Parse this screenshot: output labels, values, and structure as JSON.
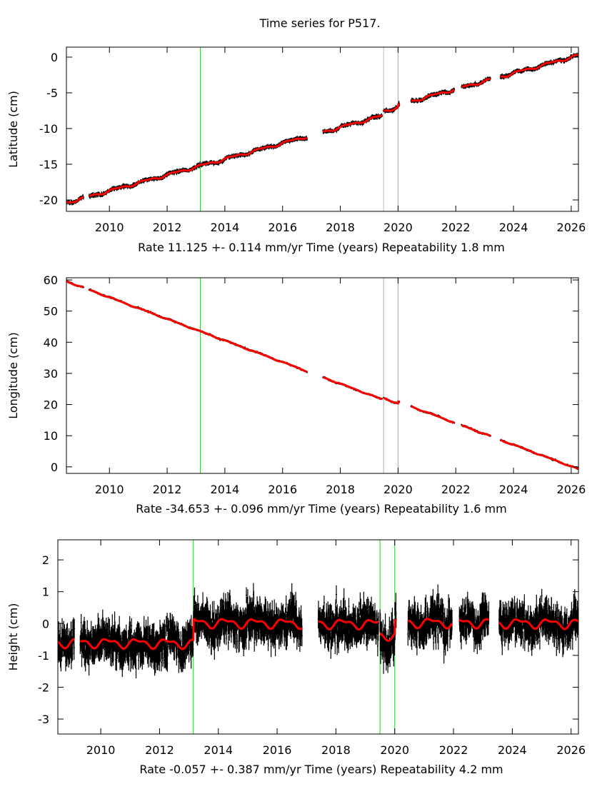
{
  "title": "Time series for P517.",
  "chart_data": [
    {
      "type": "scatter",
      "component": "latitude",
      "ylabel": "Latitude (cm)",
      "xlabel": "Time (years)",
      "rate_text": "Rate 11.125 +- 0.114 mm/yr",
      "repeatability_text": "Repeatability 1.8 mm",
      "xlim": [
        2008.51,
        2026.25
      ],
      "ylim": [
        -21.6,
        1.4
      ],
      "xticks": [
        2010,
        2012,
        2014,
        2016,
        2018,
        2020,
        2022,
        2024,
        2026
      ],
      "yticks": [
        -20,
        -15,
        -10,
        -5,
        0
      ],
      "events": [
        {
          "year": 2013.15,
          "color": "#00ee00"
        },
        {
          "year": 2019.5,
          "color": "#a8c8a8"
        },
        {
          "year": 2020.0,
          "color": "#a8a8a8"
        }
      ],
      "segments": [
        [
          2008.5,
          2009.1
        ],
        [
          2009.3,
          2016.85
        ],
        [
          2017.4,
          2019.45
        ],
        [
          2019.5,
          2020.05
        ],
        [
          2020.45,
          2021.95
        ],
        [
          2022.2,
          2023.2
        ],
        [
          2023.55,
          2026.25
        ]
      ],
      "model": {
        "start_year": 2008.5,
        "start_value": -20.4,
        "rate_cm_per_yr": 1.1125,
        "annual_amplitude": 0.15,
        "offsets": [
          {
            "year": 2019.5,
            "value": 0.6
          },
          {
            "year": 2020.0,
            "value": 0.3
          }
        ]
      },
      "noise_sigma_cm": 0.15,
      "error_bar_cm": 0.2,
      "series_colors": {
        "data": "#000000",
        "model": "#ff0000"
      }
    },
    {
      "type": "scatter",
      "component": "longitude",
      "ylabel": "Longitude (cm)",
      "xlabel": "Time (years)",
      "rate_text": "Rate -34.653 +- 0.096 mm/yr",
      "repeatability_text": "Repeatability 1.6 mm",
      "xlim": [
        2008.51,
        2026.25
      ],
      "ylim": [
        -2.1,
        60.7
      ],
      "xticks": [
        2010,
        2012,
        2014,
        2016,
        2018,
        2020,
        2022,
        2024,
        2026
      ],
      "yticks": [
        0,
        10,
        20,
        30,
        40,
        50,
        60
      ],
      "events": [
        {
          "year": 2013.15,
          "color": "#00ee00"
        },
        {
          "year": 2019.5,
          "color": "#a8a8a8"
        },
        {
          "year": 2020.0,
          "color": "#a8a8a8"
        }
      ],
      "segments": [
        [
          2008.5,
          2009.1
        ],
        [
          2009.3,
          2016.85
        ],
        [
          2017.4,
          2019.45
        ],
        [
          2019.5,
          2020.05
        ],
        [
          2020.45,
          2021.95
        ],
        [
          2022.2,
          2023.2
        ],
        [
          2023.55,
          2026.25
        ]
      ],
      "model": {
        "start_year": 2008.5,
        "start_value": 59.6,
        "rate_cm_per_yr": -3.4653,
        "annual_amplitude": 0.12,
        "offsets": [
          {
            "year": 2019.5,
            "value": 0.6
          },
          {
            "year": 2020.0,
            "value": 0.6
          }
        ]
      },
      "noise_sigma_cm": 0.15,
      "error_bar_cm": 0.25,
      "series_colors": {
        "data": "#000000",
        "model": "#ff0000"
      }
    },
    {
      "type": "scatter",
      "component": "height",
      "ylabel": "Height (cm)",
      "xlabel": "Time (years)",
      "rate_text": "Rate -0.057 +- 0.387 mm/yr",
      "repeatability_text": "Repeatability 4.2 mm",
      "xlim": [
        2008.54,
        2026.25
      ],
      "ylim": [
        -3.47,
        2.63
      ],
      "xticks": [
        2010,
        2012,
        2014,
        2016,
        2018,
        2020,
        2022,
        2024,
        2026
      ],
      "yticks": [
        -3,
        -2,
        -1,
        0,
        1,
        2
      ],
      "events": [
        {
          "year": 2013.15,
          "color": "#00ee00"
        },
        {
          "year": 2019.5,
          "color": "#00ee00"
        },
        {
          "year": 2020.0,
          "color": "#00ee00"
        }
      ],
      "segments": [
        [
          2008.5,
          2009.1
        ],
        [
          2009.3,
          2016.85
        ],
        [
          2017.4,
          2019.45
        ],
        [
          2019.5,
          2020.05
        ],
        [
          2020.45,
          2021.95
        ],
        [
          2022.2,
          2023.2
        ],
        [
          2023.55,
          2026.25
        ]
      ],
      "model": {
        "start_year": 2008.5,
        "start_value": -0.6,
        "rate_cm_per_yr": -0.0057,
        "annual_amplitude": 0.12,
        "offsets": [
          {
            "year": 2013.15,
            "value": 0.65
          },
          {
            "year": 2019.5,
            "value": -0.35
          },
          {
            "year": 2020.0,
            "value": 0.4
          }
        ]
      },
      "noise_sigma_cm": 0.42,
      "error_bar_cm": 0.3,
      "series_colors": {
        "data": "#000000",
        "model": "#ff0000"
      }
    }
  ]
}
